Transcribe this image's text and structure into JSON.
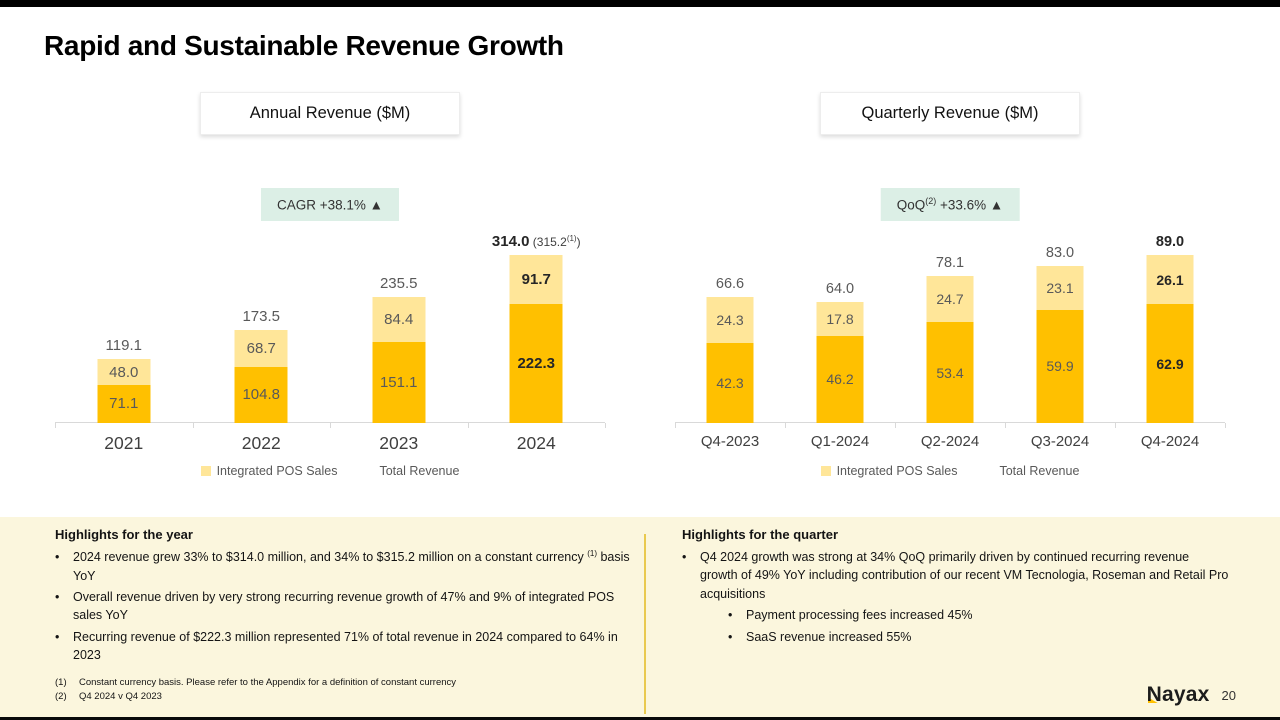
{
  "slide": {
    "title": "Rapid and Sustainable Revenue Growth",
    "page_number": "20",
    "logo_text": "Nayax"
  },
  "colors": {
    "bar_gold": "#FFC000",
    "bar_light_yellow": "#FFE699",
    "badge_mint": "#DCEFE6",
    "highlights_cream": "#FBF6DD",
    "divider_gold": "#E9C94E",
    "axis_gray": "#D9D9D9"
  },
  "chart_data": [
    {
      "type": "bar",
      "stacked": true,
      "title": "Annual Revenue ($M)",
      "badge": {
        "pre": "CAGR",
        "sup": "",
        "post": " +38.1% ▲"
      },
      "categories": [
        "2021",
        "2022",
        "2023",
        "2024"
      ],
      "series": [
        {
          "id": "bottom-segment",
          "legend_label": null,
          "color": "#FFC000",
          "values": [
            71.1,
            104.8,
            151.1,
            222.3
          ]
        },
        {
          "id": "top-segment",
          "legend_label": "Integrated POS Sales",
          "color": "#FFE699",
          "values": [
            48.0,
            68.7,
            84.4,
            91.7
          ]
        }
      ],
      "totals": [
        119.1,
        173.5,
        235.5,
        314.0
      ],
      "total_suffix": {
        "index": 3,
        "pre": " (315.2",
        "sup": "(1)",
        "post": ")"
      },
      "bold_category_index": 3,
      "legend": [
        {
          "label": "Integrated POS Sales",
          "swatch": "#FFE699"
        },
        {
          "label": "Total Revenue",
          "swatch": null
        }
      ],
      "ylim": [
        0,
        340
      ],
      "grid": false,
      "legend_position": "bottom"
    },
    {
      "type": "bar",
      "stacked": true,
      "title": "Quarterly Revenue ($M)",
      "badge": {
        "pre": "QoQ",
        "sup": "(2)",
        "post": " +33.6% ▲"
      },
      "categories": [
        "Q4-2023",
        "Q1-2024",
        "Q2-2024",
        "Q3-2024",
        "Q4-2024"
      ],
      "series": [
        {
          "id": "bottom-segment",
          "legend_label": null,
          "color": "#FFC000",
          "values": [
            42.3,
            46.2,
            53.4,
            59.9,
            62.9
          ]
        },
        {
          "id": "top-segment",
          "legend_label": "Integrated POS Sales",
          "color": "#FFE699",
          "values": [
            24.3,
            17.8,
            24.7,
            23.1,
            26.1
          ]
        }
      ],
      "totals": [
        66.6,
        64.0,
        78.1,
        83.0,
        89.0
      ],
      "total_suffix": null,
      "bold_category_index": 4,
      "legend": [
        {
          "label": "Integrated POS Sales",
          "swatch": "#FFE699"
        },
        {
          "label": "Total Revenue",
          "swatch": null
        }
      ],
      "ylim": [
        0,
        95
      ],
      "grid": false,
      "legend_position": "bottom"
    }
  ],
  "highlights": {
    "year": {
      "header": "Highlights for the year",
      "b1_pre": "2024 revenue grew 33% to $314.0 million, and 34% to $315.2 million on a constant currency ",
      "b1_sup": "(1)",
      "b1_post": " basis YoY",
      "b2": "Overall revenue driven by very strong recurring revenue growth of 47% and 9% of integrated POS sales YoY",
      "b3": "Recurring revenue of $222.3 million represented 71% of total revenue in 2024 compared to 64% in 2023"
    },
    "quarter": {
      "header": "Highlights for the quarter",
      "b1": "Q4 2024 growth was strong at 34% QoQ primarily driven by continued recurring revenue growth of 49% YoY including contribution of our recent VM Tecnologia, Roseman and Retail Pro acquisitions",
      "sub1": "Payment processing fees increased 45%",
      "sub2": "SaaS revenue increased 55%"
    }
  },
  "footnotes": [
    {
      "num": "(1)",
      "text": "Constant currency basis. Please refer to the Appendix for a definition of constant currency"
    },
    {
      "num": "(2)",
      "text": "Q4 2024 v Q4 2023"
    }
  ]
}
